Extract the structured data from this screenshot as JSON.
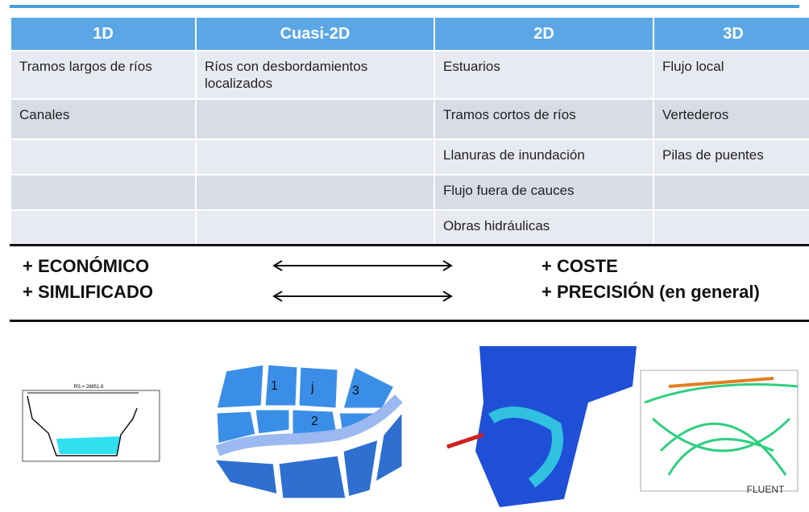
{
  "table": {
    "header": [
      "1D",
      "Cuasi-2D",
      "2D",
      "3D"
    ],
    "rows": [
      [
        "Tramos largos de ríos",
        "Ríos con desbordamientos localizados",
        "Estuarios",
        "Flujo local"
      ],
      [
        "Canales",
        null,
        "Tramos cortos de ríos",
        "Vertederos"
      ],
      [
        null,
        null,
        "Llanuras de inundación",
        "Pilas de puentes"
      ],
      [
        null,
        null,
        "Flujo fuera de cauces",
        null
      ],
      [
        null,
        null,
        "Obras hidráulicas",
        null
      ]
    ]
  },
  "comparison": {
    "left": [
      "+ ECONÓMICO",
      "+ SIMLIFICADO"
    ],
    "right": [
      "+ COSTE",
      "+ PRECISIÓN (en general)"
    ]
  },
  "figures": {
    "section_label": "RS = 28851.6",
    "mesh_labels": [
      "1",
      "j",
      "3",
      "2"
    ],
    "logo": "FLUENT"
  }
}
